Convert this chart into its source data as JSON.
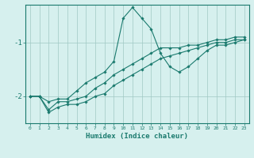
{
  "xlabel": "Humidex (Indice chaleur)",
  "ylabel": "",
  "background_color": "#d6f0ee",
  "line_color": "#1a7a6e",
  "grid_color": "#a0c8c4",
  "x": [
    0,
    1,
    2,
    3,
    4,
    5,
    6,
    7,
    8,
    9,
    10,
    11,
    12,
    13,
    14,
    15,
    16,
    17,
    18,
    19,
    20,
    21,
    22,
    23
  ],
  "line1": [
    -2.0,
    -2.0,
    -2.1,
    -2.05,
    -2.05,
    -1.9,
    -1.75,
    -1.65,
    -1.55,
    -1.35,
    -0.55,
    -0.35,
    -0.55,
    -0.75,
    -1.2,
    -1.45,
    -1.55,
    -1.45,
    -1.3,
    -1.15,
    -1.05,
    -1.05,
    -1.0,
    -0.95
  ],
  "line2": [
    -2.0,
    -2.0,
    -2.25,
    -2.1,
    -2.1,
    -2.05,
    -2.0,
    -1.85,
    -1.75,
    -1.6,
    -1.5,
    -1.4,
    -1.3,
    -1.2,
    -1.1,
    -1.1,
    -1.1,
    -1.05,
    -1.05,
    -1.0,
    -0.95,
    -0.95,
    -0.9,
    -0.9
  ],
  "line3": [
    -2.0,
    -2.0,
    -2.3,
    -2.2,
    -2.15,
    -2.15,
    -2.1,
    -2.0,
    -1.95,
    -1.8,
    -1.7,
    -1.6,
    -1.5,
    -1.4,
    -1.3,
    -1.25,
    -1.2,
    -1.15,
    -1.1,
    -1.05,
    -1.0,
    -1.0,
    -0.95,
    -0.95
  ],
  "ylim": [
    -2.5,
    -0.3
  ],
  "xlim": [
    -0.5,
    23.5
  ],
  "yticks": [
    -2,
    -1
  ],
  "xtick_labels": [
    "0",
    "1",
    "2",
    "3",
    "4",
    "5",
    "6",
    "7",
    "8",
    "9",
    "10",
    "11",
    "12",
    "13",
    "14",
    "15",
    "16",
    "17",
    "18",
    "19",
    "20",
    "21",
    "22",
    "23"
  ]
}
